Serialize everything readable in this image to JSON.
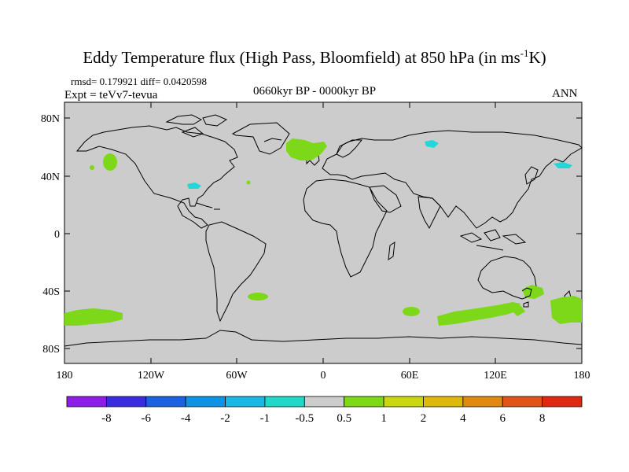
{
  "header": {
    "title_main": "Eddy Temperature flux (High Pass, Bloomfield) at 850 hPa (in ms",
    "title_sup": "-1",
    "title_end": "K)",
    "stats": "rmsd= 0.179921 diff= 0.0420598",
    "expt": "Expt = teVv7-tevua",
    "period": "0660kyr BP - 0000kyr BP",
    "season": "ANN"
  },
  "axes": {
    "x_labels": [
      "180",
      "120W",
      "60W",
      "0",
      "60E",
      "120E",
      "180"
    ],
    "y_labels": [
      "80N",
      "40N",
      "0",
      "40S",
      "80S"
    ]
  },
  "colorbar": {
    "colors": [
      "#8e1ee6",
      "#3a2ce0",
      "#1c62e0",
      "#0d92e6",
      "#1ab6e6",
      "#20d8c8",
      "#cccccc",
      "#7cd818",
      "#c8d80c",
      "#e0b80a",
      "#e08810",
      "#e05418",
      "#e02810"
    ],
    "labels": [
      "-8",
      "-6",
      "-4",
      "-2",
      "-1",
      "-0.5",
      "0.5",
      "1",
      "2",
      "4",
      "6",
      "8"
    ]
  },
  "colors": {
    "ocean": "#cccccc",
    "positive_1": "#7cd818",
    "negative_05": "#20d8d8"
  }
}
